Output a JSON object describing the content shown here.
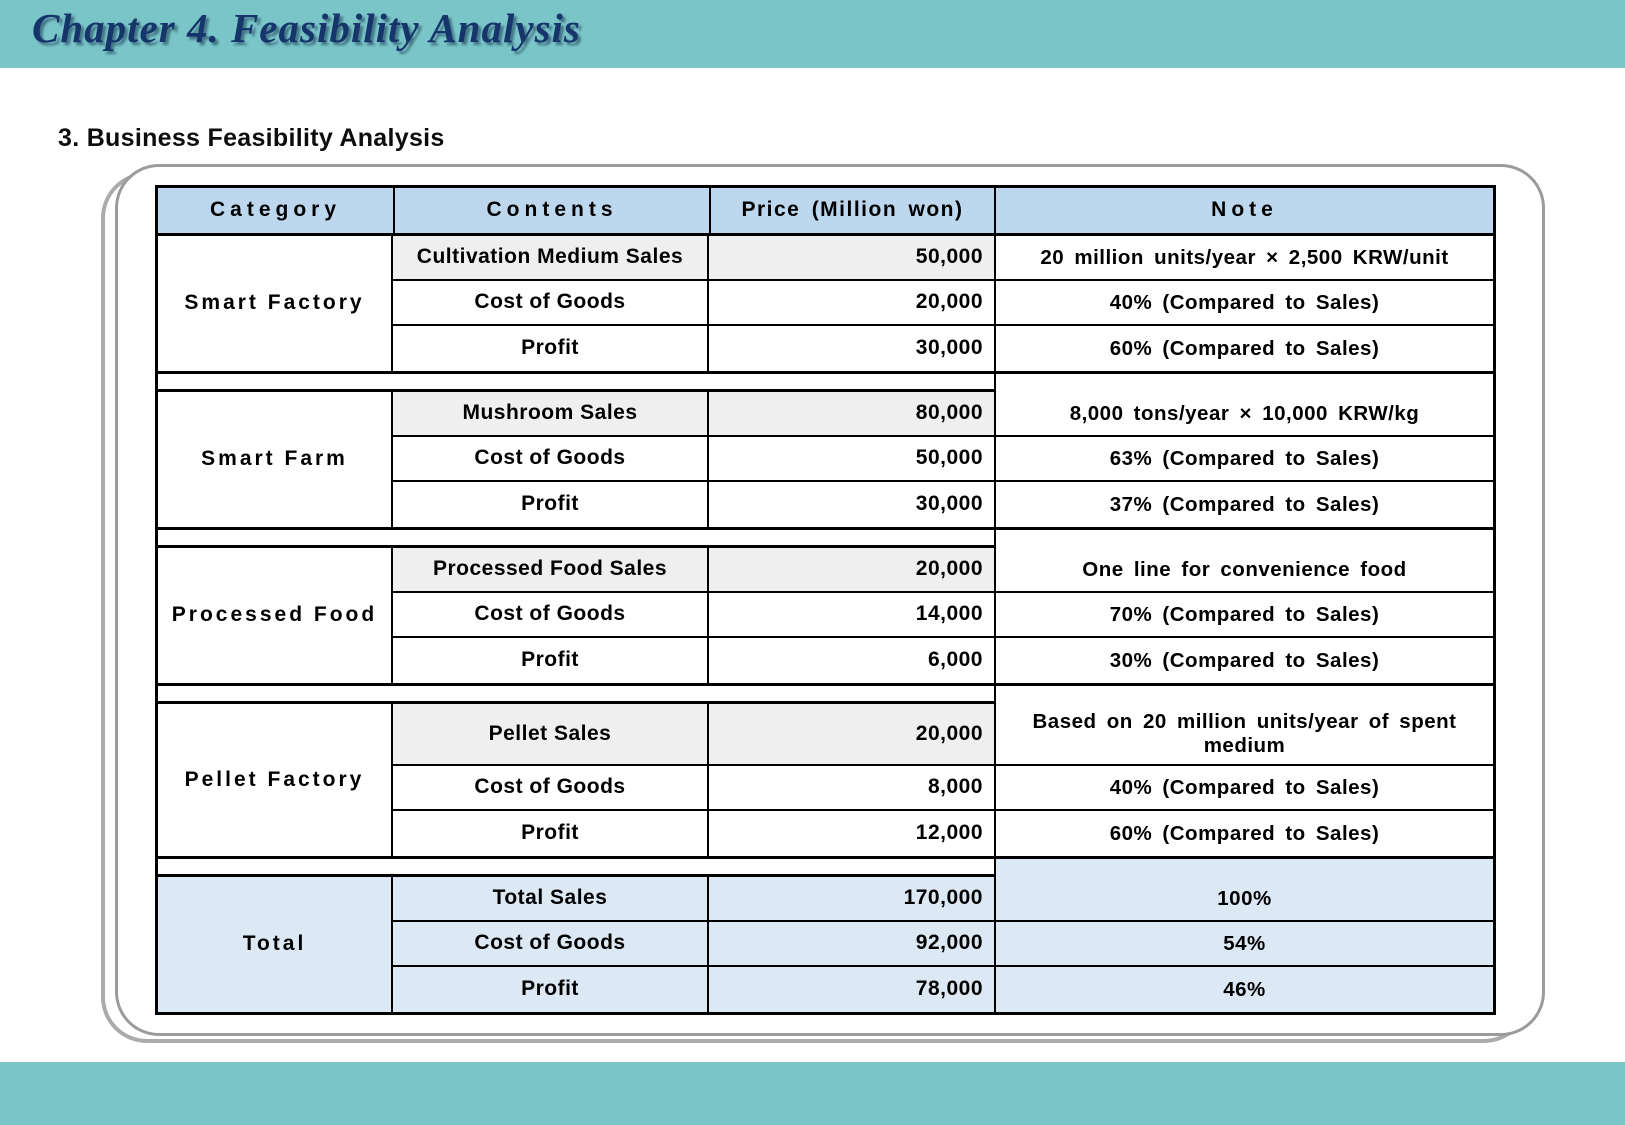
{
  "page": {
    "chapter_title": "Chapter 4. Feasibility Analysis",
    "section_heading": "3. Business Feasibility Analysis"
  },
  "colors": {
    "band_teal": "#79c5c8",
    "header_row_blue": "#bdd7ee",
    "sales_row_gray": "#efefef",
    "total_section_blue": "#dce9f5",
    "title_navy": "#16366b",
    "panel_border_gray": "#9b9b9b"
  },
  "table": {
    "headers": {
      "category": "Category",
      "contents": "Contents",
      "price": "Price (Million won)",
      "note": "Note"
    },
    "sections": [
      {
        "category": "Smart Factory",
        "rows": [
          {
            "contents": "Cultivation Medium Sales",
            "price": "50,000",
            "note": "20 million units/year × 2,500 KRW/unit"
          },
          {
            "contents": "Cost of Goods",
            "price": "20,000",
            "note": "40% (Compared to Sales)"
          },
          {
            "contents": "Profit",
            "price": "30,000",
            "note": "60% (Compared to Sales)"
          }
        ]
      },
      {
        "category": "Smart Farm",
        "rows": [
          {
            "contents": "Mushroom Sales",
            "price": "80,000",
            "note": "8,000 tons/year × 10,000 KRW/kg"
          },
          {
            "contents": "Cost of Goods",
            "price": "50,000",
            "note": "63% (Compared to Sales)"
          },
          {
            "contents": "Profit",
            "price": "30,000",
            "note": "37% (Compared to Sales)"
          }
        ]
      },
      {
        "category": "Processed Food",
        "rows": [
          {
            "contents": "Processed Food Sales",
            "price": "20,000",
            "note": "One line for convenience food"
          },
          {
            "contents": "Cost of Goods",
            "price": "14,000",
            "note": "70% (Compared to Sales)"
          },
          {
            "contents": "Profit",
            "price": "6,000",
            "note": "30% (Compared to Sales)"
          }
        ]
      },
      {
        "category": "Pellet Factory",
        "rows": [
          {
            "contents": "Pellet Sales",
            "price": "20,000",
            "note": "Based on 20 million units/year of spent medium"
          },
          {
            "contents": "Cost of Goods",
            "price": "8,000",
            "note": "40% (Compared to Sales)"
          },
          {
            "contents": "Profit",
            "price": "12,000",
            "note": "60% (Compared to Sales)"
          }
        ]
      },
      {
        "category": "Total",
        "rows": [
          {
            "contents": "Total Sales",
            "price": "170,000",
            "note": "100%"
          },
          {
            "contents": "Cost of Goods",
            "price": "92,000",
            "note": "54%"
          },
          {
            "contents": "Profit",
            "price": "78,000",
            "note": "46%"
          }
        ]
      }
    ]
  }
}
